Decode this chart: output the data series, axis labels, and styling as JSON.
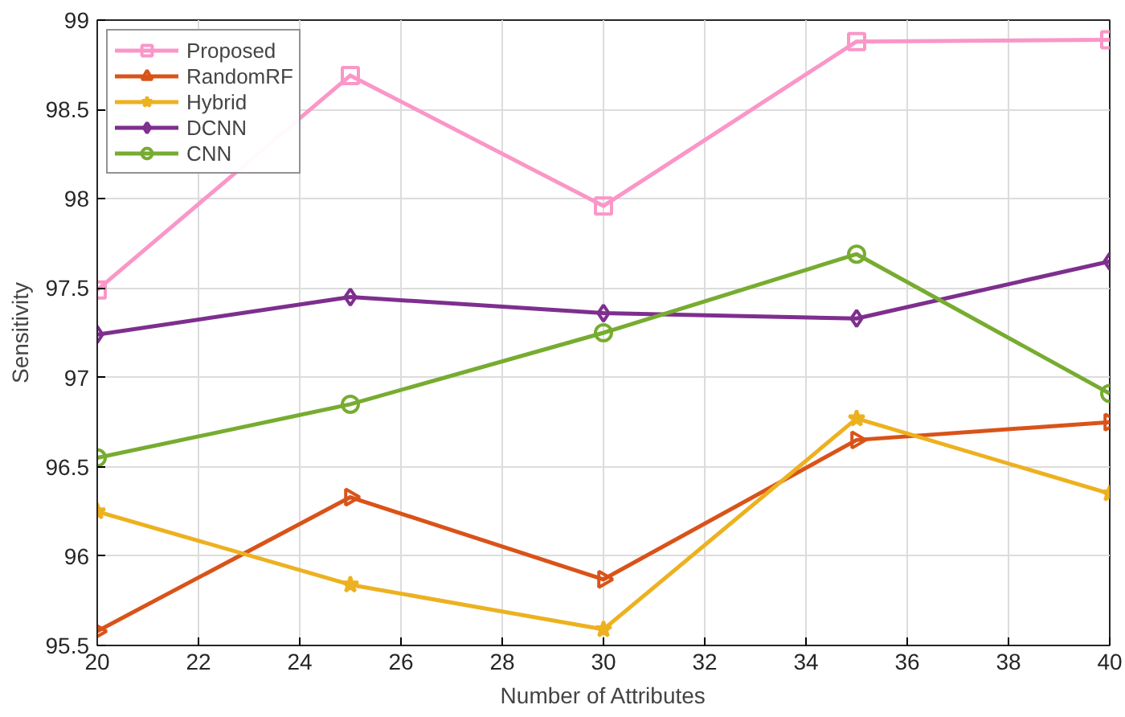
{
  "chart_data": {
    "type": "line",
    "xlabel": "Number of Attributes",
    "ylabel": "Sensitivity",
    "x": [
      20,
      25,
      30,
      35,
      40
    ],
    "series": [
      {
        "name": "Proposed",
        "color": "#fa96c8",
        "marker": "square",
        "values": [
          97.49,
          98.69,
          97.96,
          98.88,
          98.89
        ]
      },
      {
        "name": "RandomRF",
        "color": "#d95319",
        "marker": "triangle",
        "values": [
          95.58,
          96.33,
          95.87,
          96.65,
          96.75
        ]
      },
      {
        "name": "Hybrid",
        "color": "#edb120",
        "marker": "star",
        "values": [
          96.25,
          95.84,
          95.59,
          96.77,
          96.35
        ]
      },
      {
        "name": "DCNN",
        "color": "#7e2f8e",
        "marker": "diamond",
        "values": [
          97.24,
          97.45,
          97.36,
          97.33,
          97.65
        ]
      },
      {
        "name": "CNN",
        "color": "#77ac30",
        "marker": "circle",
        "values": [
          96.55,
          96.85,
          97.25,
          97.69,
          96.91
        ]
      }
    ],
    "xlim": [
      20,
      40
    ],
    "xticks": [
      20,
      22,
      24,
      26,
      28,
      30,
      32,
      34,
      36,
      38,
      40
    ],
    "ylim": [
      95.5,
      99
    ],
    "yticks": [
      95.5,
      96,
      96.5,
      97,
      97.5,
      98,
      98.5,
      99
    ],
    "grid": true,
    "legend": "top left",
    "line_style": "solid"
  }
}
